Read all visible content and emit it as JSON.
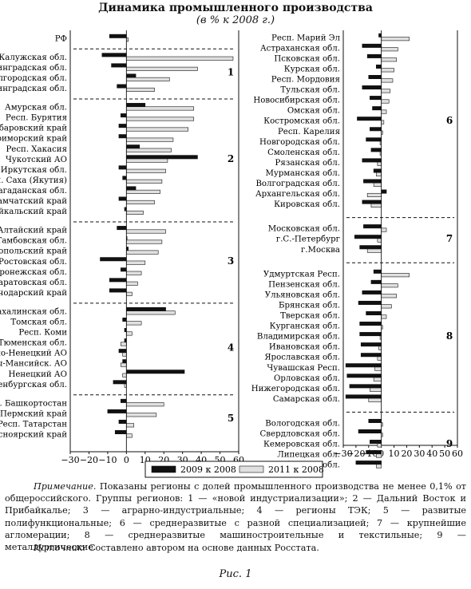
{
  "title": "Динамика промышленного производства",
  "subtitle": "(в % к 2008 г.)",
  "colors": {
    "s2009": "#111111",
    "s2011": "#e0e0e0",
    "stroke": "#111111"
  },
  "legend": [
    "2009 к 2008",
    "2011 к 2008"
  ],
  "note_label": "Примечание.",
  "note_text": "Показаны регионы с долей промышленного производства не менее 0,1% от общероссийского. Группы регионов: 1 — «новой индустриализации»; 2 — Дальний Восток и Прибайкалье; 3 — аграрно-индустриальные; 4 — регионы ТЭК; 5 — развитые полифункциональные; 6 — среднеразвитые с разной специализацией; 7 — крупнейшие агломерации; 8 — среднеразвитые машиностроительные и текстильные; 9 — металлургические.",
  "source_label": "Источник:",
  "source_text": "Составлено автором на основе данных Росстата.",
  "figure_caption": "Рис. 1",
  "chart_data": [
    {
      "type": "bar",
      "orientation": "horizontal",
      "xlim": [
        -30,
        60
      ],
      "xticks": [
        "−30",
        "−20",
        "−10",
        "0",
        "10",
        "20",
        "30",
        "40",
        "50",
        "60"
      ],
      "series_names": [
        "2009 к 2008",
        "2011 к 2008"
      ],
      "groups": [
        {
          "label": "",
          "rows": [
            {
              "name": "РФ",
              "v2009": -9,
              "v2011": 1
            }
          ]
        },
        {
          "label": "1",
          "rows": [
            {
              "name": "Калужская обл.",
              "v2009": -13,
              "v2011": 57
            },
            {
              "name": "Калининградская обл.",
              "v2009": -8,
              "v2011": 38
            },
            {
              "name": "Белгородская обл.",
              "v2009": 5,
              "v2011": 23
            },
            {
              "name": "Ленинградская обл.",
              "v2009": -5,
              "v2011": 15
            }
          ]
        },
        {
          "label": "2",
          "rows": [
            {
              "name": "Амурская обл.",
              "v2009": 10,
              "v2011": 36
            },
            {
              "name": "Респ. Бурятия",
              "v2009": -3,
              "v2011": 36
            },
            {
              "name": "Хабаровский край",
              "v2009": -4,
              "v2011": 33
            },
            {
              "name": "Приморский край",
              "v2009": -4,
              "v2011": 25
            },
            {
              "name": "Респ. Хакасия",
              "v2009": 7,
              "v2011": 24
            },
            {
              "name": "Чукотский АО",
              "v2009": 38,
              "v2011": 22
            },
            {
              "name": "Иркутская обл.",
              "v2009": -4,
              "v2011": 21
            },
            {
              "name": "Респ. Саха (Якутия)",
              "v2009": -2,
              "v2011": 19
            },
            {
              "name": "Магаданская обл.",
              "v2009": 5,
              "v2011": 18
            },
            {
              "name": "Камчатский край",
              "v2009": -4,
              "v2011": 15
            },
            {
              "name": "Забайкальский край",
              "v2009": -1,
              "v2011": 9
            }
          ]
        },
        {
          "label": "3",
          "rows": [
            {
              "name": "Алтайский край",
              "v2009": -5,
              "v2011": 21
            },
            {
              "name": "Тамбовская обл.",
              "v2009": 0,
              "v2011": 19
            },
            {
              "name": "Ставропольский край",
              "v2009": 1,
              "v2011": 17
            },
            {
              "name": "Ростовская обл.",
              "v2009": -14,
              "v2011": 10
            },
            {
              "name": "Воронежская обл.",
              "v2009": -3,
              "v2011": 8
            },
            {
              "name": "Саратовская обл.",
              "v2009": -9,
              "v2011": 6
            },
            {
              "name": "Краснодарский край",
              "v2009": -9,
              "v2011": 3
            }
          ]
        },
        {
          "label": "4",
          "rows": [
            {
              "name": "Сахалинская обл.",
              "v2009": 21,
              "v2011": 26
            },
            {
              "name": "Томская обл.",
              "v2009": -2,
              "v2011": 8
            },
            {
              "name": "Респ. Коми",
              "v2009": -1,
              "v2011": 3
            },
            {
              "name": "Тюменская обл.",
              "v2009": -1,
              "v2011": -3
            },
            {
              "name": "Ямало-Ненецкий АО",
              "v2009": -4,
              "v2011": -2
            },
            {
              "name": "Ханты-Мансийск. АО",
              "v2009": -2,
              "v2011": -3
            },
            {
              "name": "Ненецкий АО",
              "v2009": 31,
              "v2011": -2
            },
            {
              "name": "Оренбургская обл.",
              "v2009": -7,
              "v2011": -1
            }
          ]
        },
        {
          "label": "5",
          "rows": [
            {
              "name": "Респ. Башкортостан",
              "v2009": -3,
              "v2011": 20
            },
            {
              "name": "Пермский край",
              "v2009": -10,
              "v2011": 16
            },
            {
              "name": "Респ. Татарстан",
              "v2009": -4,
              "v2011": 4
            },
            {
              "name": "Красноярский край",
              "v2009": -6,
              "v2011": 3
            }
          ]
        },
        {
          "label": "6",
          "rows": [
            {
              "name": "Респ. Марий Эл",
              "v2009": -2,
              "v2011": 22
            },
            {
              "name": "Астраханская обл.",
              "v2009": -15,
              "v2011": 13
            },
            {
              "name": "Псковская обл.",
              "v2009": -11,
              "v2011": 12
            },
            {
              "name": "Курская обл.",
              "v2009": -4,
              "v2011": 10
            },
            {
              "name": "Респ. Мордовия",
              "v2009": -10,
              "v2011": 9
            },
            {
              "name": "Тульская обл.",
              "v2009": -15,
              "v2011": 7
            },
            {
              "name": "Новосибирская обл.",
              "v2009": -9,
              "v2011": 6
            },
            {
              "name": "Омская обл.",
              "v2009": -7,
              "v2011": 4
            },
            {
              "name": "Костромская обл.",
              "v2009": -19,
              "v2011": 2
            },
            {
              "name": "Респ. Карелия",
              "v2009": -9,
              "v2011": 1
            },
            {
              "name": "Новгородская обл.",
              "v2009": -12,
              "v2011": -1
            },
            {
              "name": "Смоленская обл.",
              "v2009": -8,
              "v2011": -1
            },
            {
              "name": "Рязанская обл.",
              "v2009": -15,
              "v2011": -3
            },
            {
              "name": "Мурманская обл.",
              "v2009": -6,
              "v2011": -4
            },
            {
              "name": "Волгоградская обл.",
              "v2009": -14,
              "v2011": -6
            },
            {
              "name": "Архангельская обл.",
              "v2009": 4,
              "v2011": -11
            },
            {
              "name": "Кировская обл.",
              "v2009": -15,
              "v2011": -8
            }
          ]
        },
        {
          "label": "7",
          "rows": [
            {
              "name": "Московская обл.",
              "v2009": -14,
              "v2011": 4
            },
            {
              "name": "г.С.-Петербург",
              "v2009": -21,
              "v2011": -3
            },
            {
              "name": "г.Москва",
              "v2009": -17,
              "v2011": -11
            }
          ]
        },
        {
          "label": "8",
          "rows": [
            {
              "name": "Удмуртская Респ.",
              "v2009": -6,
              "v2011": 22
            },
            {
              "name": "Пензенская обл.",
              "v2009": -8,
              "v2011": 13
            },
            {
              "name": "Ульяновская обл.",
              "v2009": -15,
              "v2011": 12
            },
            {
              "name": "Брянская обл.",
              "v2009": -18,
              "v2011": 8
            },
            {
              "name": "Тверская обл.",
              "v2009": -12,
              "v2011": 4
            },
            {
              "name": "Курганская обл.",
              "v2009": -17,
              "v2011": 1
            },
            {
              "name": "Владимирская обл.",
              "v2009": -17,
              "v2011": -1
            },
            {
              "name": "Ивановская обл.",
              "v2009": -16,
              "v2011": -2
            },
            {
              "name": "Ярославская обл.",
              "v2009": -16,
              "v2011": -3
            },
            {
              "name": "Чувашская Респ.",
              "v2009": -28,
              "v2011": -5
            },
            {
              "name": "Орловская обл.",
              "v2009": -27,
              "v2011": -6
            },
            {
              "name": "Нижегородская обл.",
              "v2009": -25,
              "v2011": -9
            },
            {
              "name": "Самарская обл.",
              "v2009": -28,
              "v2011": -10
            }
          ]
        },
        {
          "label": "9",
          "rows": [
            {
              "name": "Вологодская обл.",
              "v2009": -10,
              "v2011": 1
            },
            {
              "name": "Свердловская обл.",
              "v2009": -18,
              "v2011": 1
            },
            {
              "name": "Кемеровская обл.",
              "v2009": -9,
              "v2011": -3
            },
            {
              "name": "Липецкая обл.",
              "v2009": -12,
              "v2011": -4
            },
            {
              "name": "Челябинская обл.",
              "v2009": -20,
              "v2011": -4
            }
          ]
        }
      ]
    }
  ]
}
